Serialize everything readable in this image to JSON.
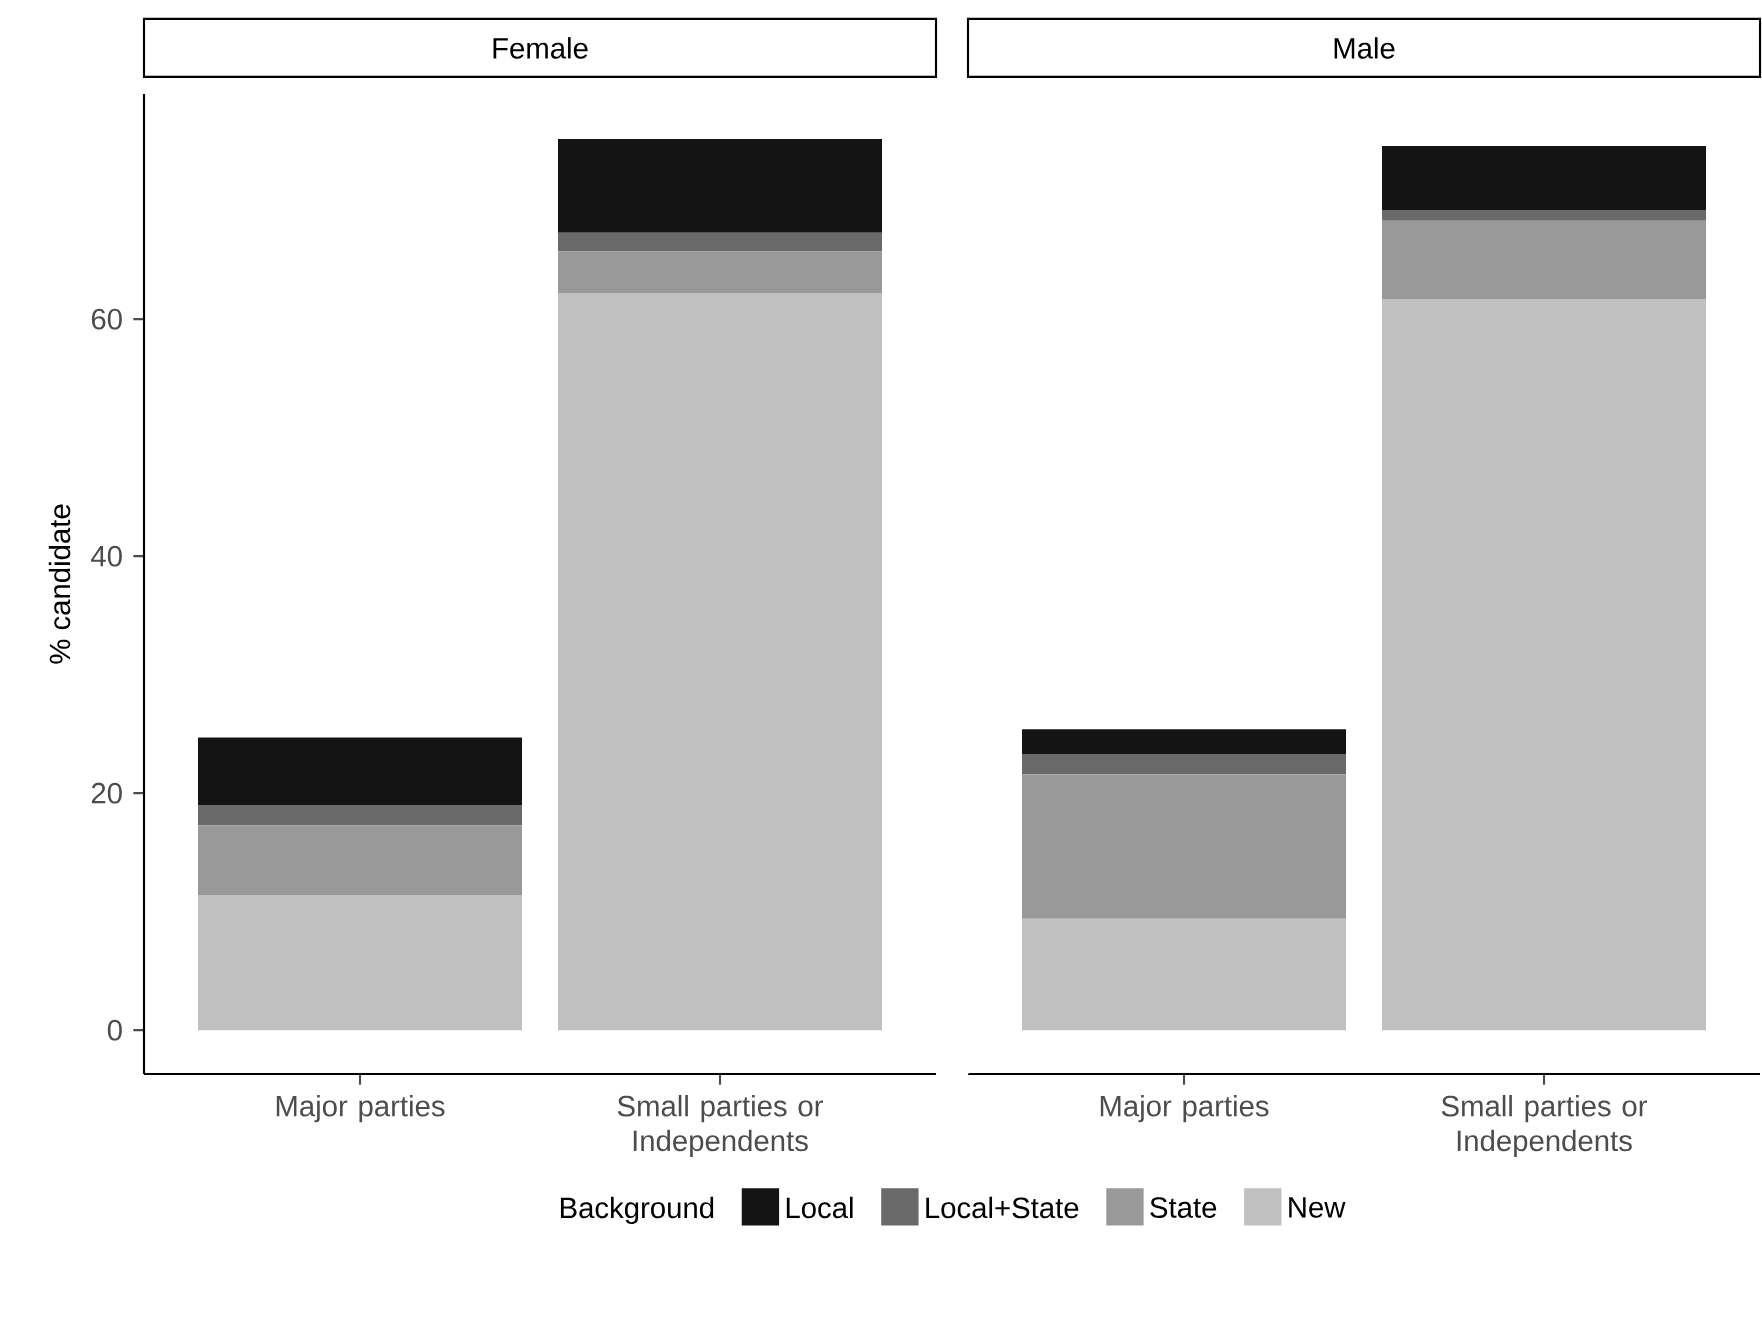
{
  "chart_data": [
    {
      "type": "bar",
      "stacked": true,
      "title": "Female",
      "ylabel": "% candidate",
      "legend_title": "Background",
      "legend": "bottom",
      "categories": [
        "Major parties",
        "Small parties or Independents"
      ],
      "ylim": [
        -3.7,
        79
      ],
      "yticks": [
        0,
        20,
        40,
        60
      ],
      "series": [
        {
          "name": "New",
          "color": "#c0c0c0",
          "values": [
            11.4,
            62.2
          ]
        },
        {
          "name": "State",
          "color": "#999999",
          "values": [
            5.9,
            3.5
          ]
        },
        {
          "name": "Local+State",
          "color": "#696969",
          "values": [
            1.7,
            1.6
          ]
        },
        {
          "name": "Local",
          "color": "#141414",
          "values": [
            5.7,
            7.9
          ]
        }
      ]
    },
    {
      "type": "bar",
      "stacked": true,
      "title": "Male",
      "tick_labels": "x",
      "categories": [
        "Major parties",
        "Small parties or Independents"
      ],
      "ylim": [
        -3.7,
        79
      ],
      "yticks": [
        0,
        20,
        40,
        60
      ],
      "series": [
        {
          "color": "#c0c0c0",
          "values": [
            9.4,
            61.7
          ]
        },
        {
          "color": "#999999",
          "values": [
            12.2,
            6.6
          ]
        },
        {
          "color": "#696969",
          "values": [
            1.7,
            0.9
          ]
        },
        {
          "color": "#141414",
          "values": [
            2.1,
            5.4
          ]
        }
      ]
    }
  ]
}
